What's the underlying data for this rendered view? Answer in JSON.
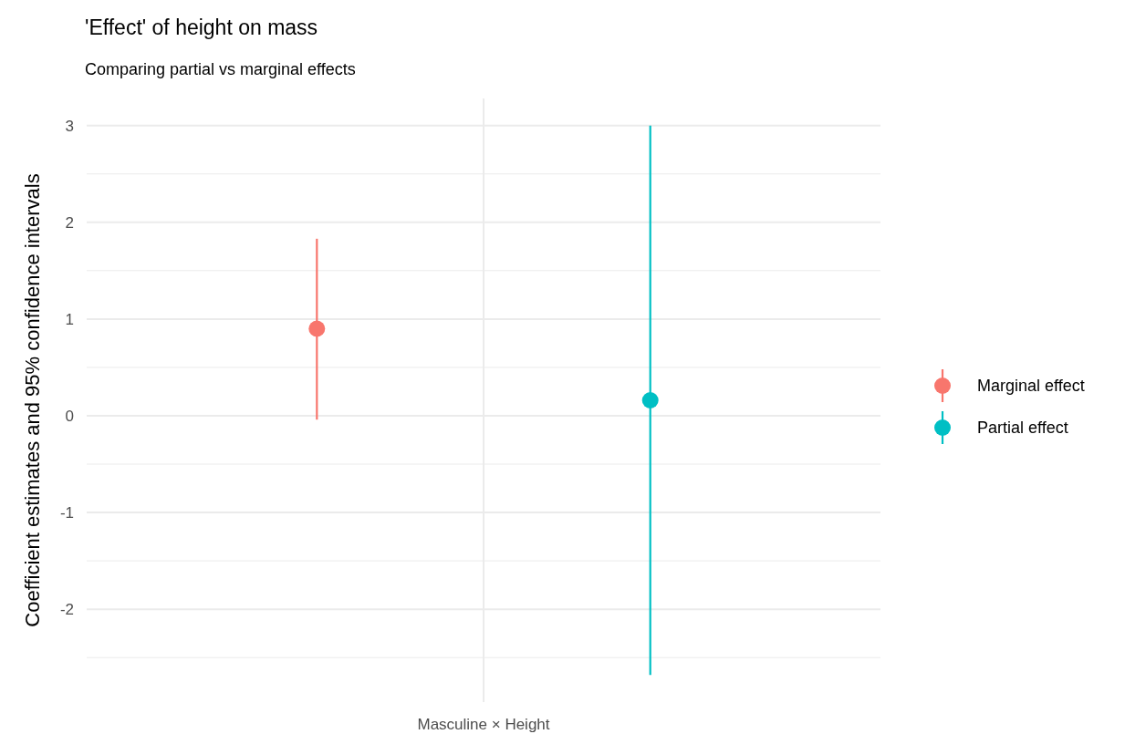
{
  "chart_data": {
    "type": "scatter",
    "title": "'Effect' of height on mass",
    "subtitle": "Comparing partial vs marginal effects",
    "ylabel": "Coefficient estimates and 95% confidence intervals",
    "categories": [
      "Masculine × Height"
    ],
    "ylim": [
      -2.96,
      3.28
    ],
    "yticks": [
      -2,
      -1,
      0,
      1,
      2,
      3
    ],
    "grid": true,
    "legend": "right",
    "marker": "circle",
    "series": [
      {
        "name": "Marginal effect",
        "color": "#f8766d",
        "values": [
          0.9
        ],
        "errors": [
          [
            -0.04,
            1.83
          ]
        ]
      },
      {
        "name": "Partial effect",
        "color": "#00bfc4",
        "values": [
          0.16
        ],
        "errors": [
          [
            -2.68,
            3.0
          ]
        ]
      }
    ]
  }
}
